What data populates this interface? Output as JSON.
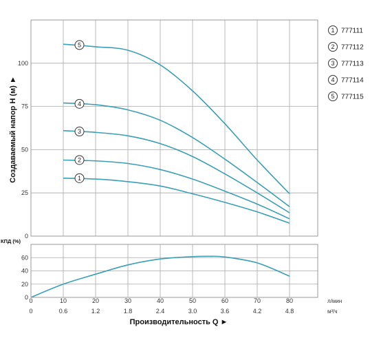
{
  "chart_data": [
    {
      "type": "line",
      "id": "head",
      "ylabel": "Создаваемый напор H (м) ►",
      "ylim": [
        0,
        125
      ],
      "yticks": [
        "0",
        "25",
        "50",
        "75",
        "100"
      ],
      "ytick_values": [
        0,
        25,
        50,
        75,
        100
      ],
      "xlim": [
        0,
        80
      ],
      "grid": true,
      "color": "#3a9fb5",
      "series": [
        {
          "name": "1",
          "x": [
            10,
            20,
            30,
            40,
            50,
            60,
            70,
            80
          ],
          "y": [
            33.5,
            33,
            31.5,
            29,
            24.5,
            19.5,
            14,
            7.5
          ]
        },
        {
          "name": "2",
          "x": [
            10,
            20,
            30,
            40,
            50,
            60,
            70,
            80
          ],
          "y": [
            44,
            43.5,
            42,
            38.5,
            33,
            26,
            18.5,
            10
          ]
        },
        {
          "name": "3",
          "x": [
            10,
            20,
            30,
            40,
            50,
            60,
            70,
            80
          ],
          "y": [
            61,
            60,
            58,
            53.5,
            46,
            36,
            25,
            13.5
          ]
        },
        {
          "name": "4",
          "x": [
            10,
            20,
            30,
            40,
            50,
            60,
            70,
            80
          ],
          "y": [
            77,
            76,
            73,
            67,
            57,
            44.5,
            31,
            17
          ]
        },
        {
          "name": "5",
          "x": [
            10,
            20,
            30,
            40,
            50,
            60,
            70,
            80
          ],
          "y": [
            111,
            109.5,
            107.5,
            99,
            84,
            65,
            44,
            24.5
          ]
        }
      ],
      "markers": [
        {
          "label": "1",
          "x": 15,
          "y": 33.5
        },
        {
          "label": "2",
          "x": 15,
          "y": 44
        },
        {
          "label": "3",
          "x": 15,
          "y": 60.5
        },
        {
          "label": "4",
          "x": 15,
          "y": 76.5
        },
        {
          "label": "5",
          "x": 15,
          "y": 110.5
        }
      ]
    },
    {
      "type": "line",
      "id": "efficiency",
      "ylabel": "КПД (%)",
      "ylim": [
        0,
        80
      ],
      "yticks": [
        "0",
        "20",
        "40",
        "60"
      ],
      "ytick_values": [
        0,
        20,
        40,
        60
      ],
      "xlim": [
        0,
        80
      ],
      "grid": true,
      "color": "#3a9fb5",
      "series": [
        {
          "name": "КПД",
          "x": [
            0,
            10,
            20,
            30,
            40,
            50,
            55,
            60,
            70,
            80
          ],
          "y": [
            0,
            20,
            35,
            49,
            58,
            61.5,
            62,
            61,
            52,
            32
          ]
        }
      ]
    }
  ],
  "x_axis": {
    "title": "Производительность Q ►",
    "lpm_ticks": [
      "0",
      "10",
      "20",
      "30",
      "40",
      "50",
      "60",
      "70",
      "80"
    ],
    "lpm_values": [
      0,
      10,
      20,
      30,
      40,
      50,
      60,
      70,
      80
    ],
    "lpm_unit": "л/мин",
    "m3h_ticks": [
      "0",
      "0.6",
      "1.2",
      "1.8",
      "2.4",
      "3.0",
      "3.6",
      "4.2",
      "4.8"
    ],
    "m3h_unit": "м³/ч"
  },
  "legend": [
    {
      "num": "1",
      "label": "777111"
    },
    {
      "num": "2",
      "label": "777112"
    },
    {
      "num": "3",
      "label": "777113"
    },
    {
      "num": "4",
      "label": "777114"
    },
    {
      "num": "5",
      "label": "777115"
    }
  ]
}
